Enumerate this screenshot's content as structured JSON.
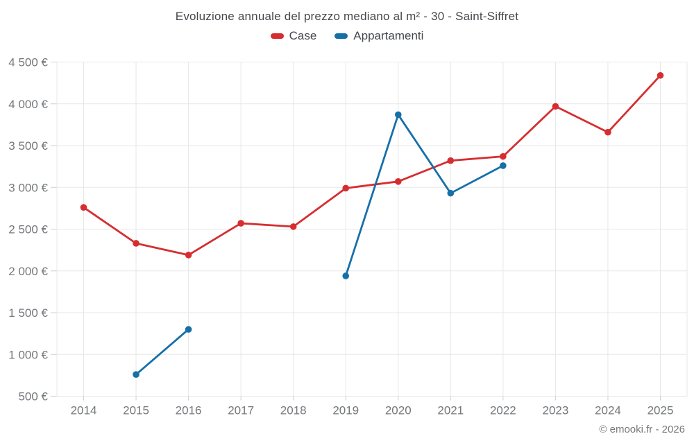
{
  "page": {
    "watermark": "© emooki.fr - 2026"
  },
  "chart_data": {
    "type": "line",
    "title": "Evoluzione annuale del prezzo mediano al m² - 30 - Saint-Siffret",
    "categories": [
      "2014",
      "2015",
      "2016",
      "2017",
      "2018",
      "2019",
      "2020",
      "2021",
      "2022",
      "2023",
      "2024",
      "2025"
    ],
    "series": [
      {
        "name": "Case",
        "color": "#d62e30",
        "values": [
          2760,
          2330,
          2190,
          2570,
          2530,
          2990,
          3070,
          3320,
          3370,
          3970,
          3660,
          4340
        ]
      },
      {
        "name": "Appartamenti",
        "color": "#1670a8",
        "values": [
          null,
          760,
          1300,
          null,
          null,
          1940,
          3870,
          2930,
          3260,
          null,
          null,
          null
        ]
      }
    ],
    "xlabel": "",
    "ylabel": "",
    "ylim": [
      500,
      4500
    ],
    "ytick_step": 500,
    "ytick_labels": [
      "500 €",
      "1 000 €",
      "1 500 €",
      "2 000 €",
      "2 500 €",
      "3 000 €",
      "3 500 €",
      "4 000 €",
      "4 500 €"
    ],
    "currency": "€",
    "grid": true,
    "legend_position": "top"
  },
  "style": {
    "grid_color": "#e7e7e7",
    "tick_color": "#cfcfcf",
    "axis_label_color": "#75787b",
    "title_color": "#45484c"
  }
}
